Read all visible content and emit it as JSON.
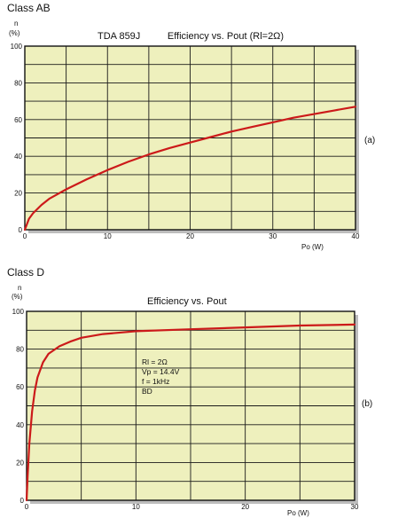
{
  "chart_data": [
    {
      "type": "line",
      "section_label": "Class AB",
      "title": "TDA 859J          Efficiency vs. Pout (Rl=2Ω)",
      "ylabel_top": "n",
      "ylabel_unit": "(%)",
      "xlabel": "Po (W)",
      "tag": "(a)",
      "xlim": [
        0,
        40
      ],
      "ylim": [
        0,
        100
      ],
      "xticks": [
        0,
        10,
        20,
        30,
        40
      ],
      "yticks": [
        0,
        20,
        40,
        60,
        80,
        100
      ],
      "grid": true,
      "line_color": "#cc1a1a",
      "background_color": "#eef0bd",
      "series": [
        {
          "x": [
            0,
            0.5,
            1,
            2,
            3,
            5,
            7.5,
            10,
            12.5,
            15,
            17.5,
            20,
            22.5,
            25,
            27.5,
            30,
            32.5,
            35,
            37.5,
            40
          ],
          "values": [
            0,
            6,
            9,
            13.5,
            17,
            22,
            27.5,
            32.5,
            37,
            41,
            44.5,
            47.5,
            50.5,
            53.5,
            56,
            58.5,
            61,
            63,
            65,
            67
          ]
        }
      ]
    },
    {
      "type": "line",
      "section_label": "Class D",
      "title": "Efficiency vs. Pout",
      "ylabel_top": "n",
      "ylabel_unit": "(%)",
      "xlabel": "Po (W)",
      "tag": "(b)",
      "xlim": [
        0,
        30
      ],
      "ylim": [
        0,
        100
      ],
      "xticks": [
        0,
        10,
        20,
        30
      ],
      "yticks": [
        0,
        20,
        40,
        60,
        80,
        100
      ],
      "grid": true,
      "line_color": "#cc1a1a",
      "background_color": "#eef0bd",
      "annotations": [
        "Rl = 2Ω",
        "Vp = 14.4V",
        "f = 1kHz",
        "BD"
      ],
      "series": [
        {
          "x": [
            0,
            0.1,
            0.25,
            0.5,
            0.75,
            1,
            1.5,
            2,
            3,
            4,
            5,
            7,
            10,
            15,
            20,
            25,
            30
          ],
          "values": [
            0,
            13,
            30,
            47,
            58,
            65,
            73,
            77.5,
            81.5,
            84,
            86,
            88,
            89.5,
            90.5,
            91.5,
            92.5,
            93
          ]
        }
      ]
    }
  ]
}
